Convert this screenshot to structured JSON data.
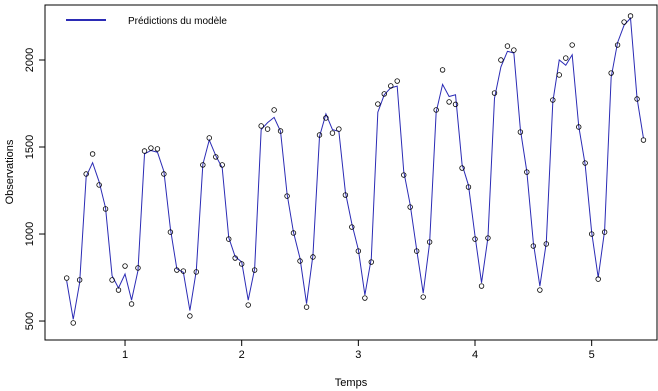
{
  "chart_data": {
    "type": "line",
    "x_label": "Temps",
    "y_label": "Observations",
    "x": [
      0.5,
      0.556,
      0.611,
      0.667,
      0.722,
      0.778,
      0.833,
      0.889,
      0.944,
      1.0,
      1.056,
      1.111,
      1.167,
      1.222,
      1.278,
      1.333,
      1.389,
      1.444,
      1.5,
      1.556,
      1.611,
      1.667,
      1.722,
      1.778,
      1.833,
      1.889,
      1.944,
      2.0,
      2.056,
      2.111,
      2.167,
      2.222,
      2.278,
      2.333,
      2.389,
      2.444,
      2.5,
      2.556,
      2.611,
      2.667,
      2.722,
      2.778,
      2.833,
      2.889,
      2.944,
      3.0,
      3.056,
      3.111,
      3.167,
      3.222,
      3.278,
      3.333,
      3.389,
      3.444,
      3.5,
      3.556,
      3.611,
      3.667,
      3.722,
      3.778,
      3.833,
      3.889,
      3.944,
      4.0,
      4.056,
      4.111,
      4.167,
      4.222,
      4.278,
      4.333,
      4.389,
      4.444,
      4.5,
      4.556,
      4.611,
      4.667,
      4.722,
      4.778,
      4.833,
      4.889,
      4.944,
      5.0,
      5.056,
      5.111,
      5.167,
      5.222,
      5.278,
      5.333,
      5.389,
      5.444
    ],
    "observations": {
      "values": [
        747,
        489,
        736,
        1345,
        1460,
        1282,
        1144,
        736,
        678,
        816,
        598,
        805,
        1477,
        1494,
        1489,
        1345,
        1011,
        793,
        787,
        529,
        782,
        1397,
        1552,
        1443,
        1397,
        971,
        862,
        828,
        592,
        793,
        1621,
        1603,
        1713,
        1592,
        1218,
        1006,
        845,
        580,
        868,
        1569,
        1667,
        1580,
        1603,
        1224,
        1040,
        902,
        632,
        839,
        1747,
        1805,
        1851,
        1879,
        1339,
        1155,
        902,
        638,
        954,
        1713,
        1943,
        1759,
        1745,
        1379,
        1270,
        971,
        701,
        977,
        1810,
        2000,
        2080,
        2057,
        1586,
        1356,
        931,
        678,
        943,
        1770,
        1914,
        2011,
        2086,
        1615,
        1408,
        1000,
        741,
        1011,
        1925,
        2086,
        2218,
        2253,
        1776,
        1540
      ]
    },
    "series": [
      {
        "name": "Prédictions du modèle",
        "color": "#2b2bb5",
        "values": [
          730,
          510,
          720,
          1330,
          1410,
          1300,
          1150,
          760,
          690,
          770,
          620,
          790,
          1460,
          1480,
          1470,
          1360,
          1030,
          800,
          780,
          560,
          790,
          1400,
          1540,
          1450,
          1380,
          980,
          870,
          840,
          620,
          800,
          1600,
          1640,
          1670,
          1590,
          1230,
          1010,
          860,
          600,
          880,
          1560,
          1690,
          1600,
          1590,
          1240,
          1060,
          910,
          650,
          860,
          1700,
          1800,
          1840,
          1850,
          1360,
          1170,
          910,
          660,
          950,
          1700,
          1860,
          1790,
          1800,
          1400,
          1280,
          990,
          720,
          980,
          1780,
          1960,
          2050,
          2040,
          1600,
          1360,
          950,
          700,
          950,
          1760,
          2000,
          1970,
          2030,
          1620,
          1400,
          1010,
          750,
          1020,
          1900,
          2100,
          2200,
          2240,
          1780,
          1550
        ]
      }
    ],
    "xlim": [
      0.314,
      5.56
    ],
    "ylim": [
      391,
      2316
    ],
    "xticks": [
      1,
      2,
      3,
      4,
      5
    ],
    "yticks": [
      500,
      1000,
      1500,
      2000
    ],
    "legend": "top-left"
  }
}
